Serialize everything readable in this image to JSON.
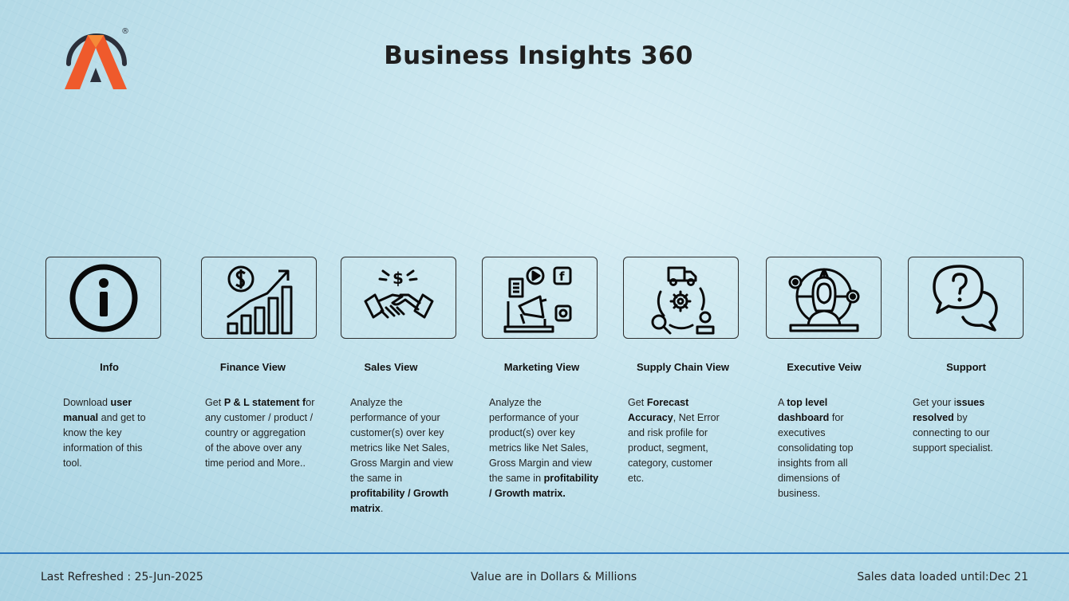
{
  "app": {
    "title": "Business Insights 360",
    "logo_mark": "®"
  },
  "colors": {
    "accent": "#2f78bf",
    "logo_orange": "#f26b2a",
    "logo_red": "#e2412f",
    "logo_dark": "#2b2f3a"
  },
  "tiles": [
    {
      "label": "Info",
      "icon": "info-icon",
      "desc": [
        {
          "t": "Download "
        },
        {
          "t": "user manual",
          "b": true
        },
        {
          "t": " and get to know the key information of this tool."
        }
      ]
    },
    {
      "label": "Finance View",
      "icon": "finance-growth-icon",
      "desc": [
        {
          "t": "Get  "
        },
        {
          "t": "P & L statement f",
          "b": true
        },
        {
          "t": "or any customer / product / country or aggregation of the above over any time period and More.."
        }
      ]
    },
    {
      "label": "Sales View",
      "icon": "handshake-icon",
      "desc": [
        {
          "t": "Analyze the performance of your customer(s) over key metrics like Net Sales, Gross Margin and view the same in "
        },
        {
          "t": "profitability / Growth matrix",
          "b": true
        },
        {
          "t": "."
        }
      ]
    },
    {
      "label": "Marketing View",
      "icon": "marketing-megaphone-icon",
      "desc": [
        {
          "t": "Analyze the performance of your product(s) over key metrics like Net Sales, Gross Margin and view the same in "
        },
        {
          "t": "profitability / Growth matrix.",
          "b": true
        }
      ]
    },
    {
      "label": "Supply Chain View",
      "icon": "supply-chain-icon",
      "desc": [
        {
          "t": "Get "
        },
        {
          "t": "Forecast Accuracy",
          "b": true
        },
        {
          "t": ", Net Error and risk profile for product, segment, category, customer etc."
        }
      ]
    },
    {
      "label": "Executive Veiw",
      "icon": "executive-icon",
      "desc": [
        {
          "t": "A "
        },
        {
          "t": "top level dashboard",
          "b": true
        },
        {
          "t": " for executives consolidating top insights from all dimensions of business."
        }
      ]
    },
    {
      "label": "Support",
      "icon": "support-chat-icon",
      "desc": [
        {
          "t": "Get your i"
        },
        {
          "t": "ssues resolved",
          "b": true
        },
        {
          "t": " by connecting to our support specialist."
        }
      ]
    }
  ],
  "footer": {
    "refreshed": "Last Refreshed : 25-Jun-2025",
    "units": "Value are in Dollars & Millions",
    "loaded": "Sales data loaded until:Dec 21"
  }
}
